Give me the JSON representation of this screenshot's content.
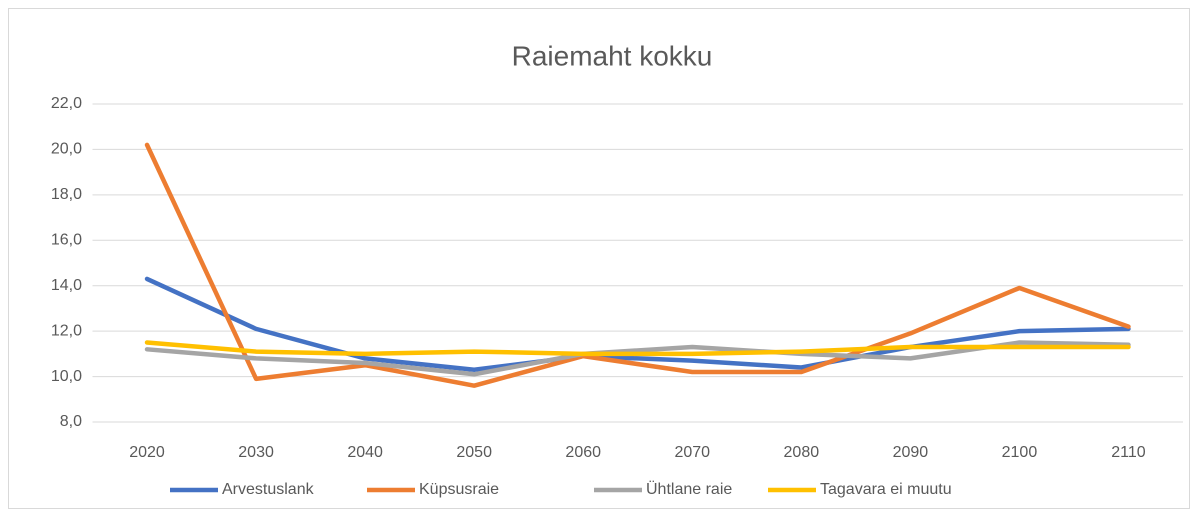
{
  "chart_data": {
    "type": "line",
    "title": "Raiemaht  kokku",
    "categories": [
      "2020",
      "2030",
      "2040",
      "2050",
      "2060",
      "2070",
      "2080",
      "2090",
      "2100",
      "2110"
    ],
    "series": [
      {
        "name": "Arvestuslank",
        "color": "#4472c4",
        "values": [
          14.3,
          12.1,
          10.8,
          10.3,
          10.9,
          10.7,
          10.4,
          11.3,
          12.0,
          12.1
        ]
      },
      {
        "name": "Küpsusraie",
        "color": "#ed7d31",
        "values": [
          20.2,
          9.9,
          10.5,
          9.6,
          10.9,
          10.2,
          10.2,
          11.9,
          13.9,
          12.2
        ]
      },
      {
        "name": "Ühtlane raie",
        "color": "#a5a5a5",
        "values": [
          11.2,
          10.8,
          10.6,
          10.1,
          11.0,
          11.3,
          11.0,
          10.8,
          11.5,
          11.4
        ]
      },
      {
        "name": "Tagavara ei muutu",
        "color": "#ffc000",
        "values": [
          11.5,
          11.1,
          11.0,
          11.1,
          11.0,
          11.0,
          11.1,
          11.3,
          11.3,
          11.3
        ]
      }
    ],
    "ylim": [
      8,
      22
    ],
    "yticks": [
      {
        "value": 8,
        "label": "8,0"
      },
      {
        "value": 10,
        "label": "10,0"
      },
      {
        "value": 12,
        "label": "12,0"
      },
      {
        "value": 14,
        "label": "14,0"
      },
      {
        "value": 16,
        "label": "16,0"
      },
      {
        "value": 18,
        "label": "18,0"
      },
      {
        "value": 20,
        "label": "20,0"
      },
      {
        "value": 22,
        "label": "22,0"
      }
    ],
    "grid": true,
    "legend": "bottom"
  }
}
